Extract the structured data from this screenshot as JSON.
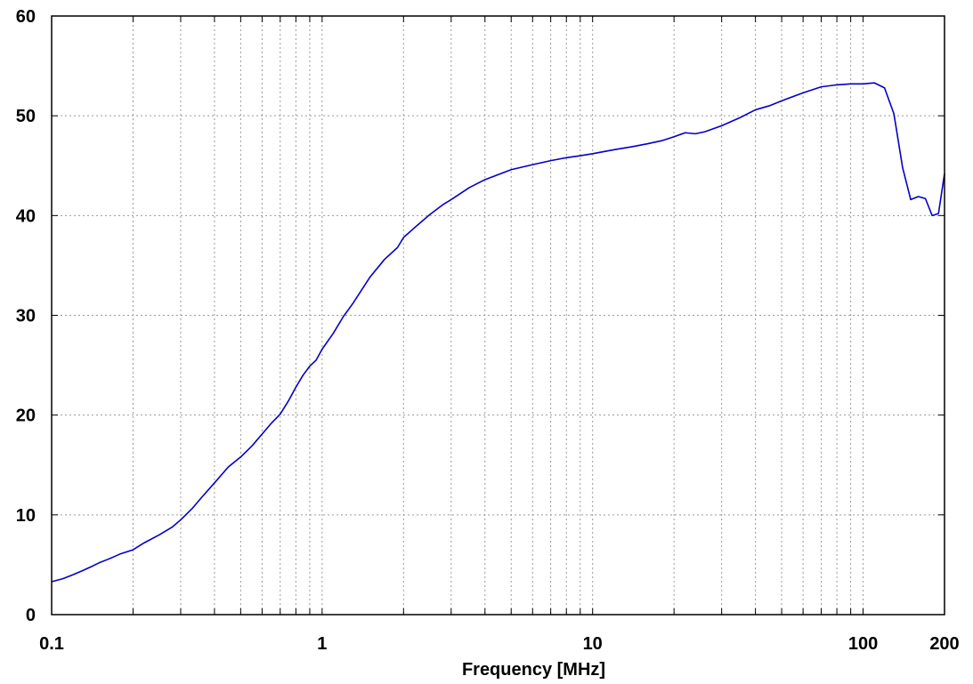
{
  "chart_data": {
    "type": "line",
    "title": "",
    "xlabel": "Frequency [MHz]",
    "ylabel": "",
    "x_scale": "log",
    "xlim": [
      0.1,
      200
    ],
    "ylim": [
      0,
      60
    ],
    "grid": true,
    "x_tick_labels": [
      {
        "value": 0.1,
        "label": "0.1"
      },
      {
        "value": 1,
        "label": "1"
      },
      {
        "value": 10,
        "label": "10"
      },
      {
        "value": 100,
        "label": "100"
      },
      {
        "value": 200,
        "label": "200"
      }
    ],
    "y_ticks": [
      0,
      10,
      20,
      30,
      40,
      50,
      60
    ],
    "line_color": "#0000cc",
    "series": [
      {
        "x": [
          0.1,
          0.11,
          0.12,
          0.13,
          0.14,
          0.15,
          0.16,
          0.17,
          0.18,
          0.2,
          0.22,
          0.25,
          0.28,
          0.3,
          0.33,
          0.36,
          0.4,
          0.45,
          0.5,
          0.55,
          0.6,
          0.65,
          0.7,
          0.75,
          0.8,
          0.85,
          0.9,
          0.95,
          1.0,
          1.1,
          1.2,
          1.3,
          1.5,
          1.7,
          1.9,
          2.0,
          2.2,
          2.5,
          2.8,
          3.0,
          3.5,
          4.0,
          5.0,
          6.0,
          7.0,
          8.0,
          9.0,
          10,
          12,
          14,
          16,
          18,
          20,
          22,
          24,
          26,
          30,
          35,
          40,
          45,
          50,
          60,
          70,
          80,
          90,
          100,
          110,
          120,
          130,
          140,
          150,
          160,
          170,
          180,
          190,
          200
        ],
        "y": [
          3.3,
          3.6,
          4.0,
          4.4,
          4.8,
          5.2,
          5.5,
          5.8,
          6.1,
          6.5,
          7.2,
          8.0,
          8.8,
          9.5,
          10.6,
          11.8,
          13.2,
          14.8,
          15.8,
          16.9,
          18.1,
          19.2,
          20.1,
          21.4,
          22.8,
          24.0,
          24.9,
          25.5,
          26.6,
          28.2,
          29.9,
          31.2,
          33.8,
          35.6,
          36.8,
          37.8,
          38.8,
          40.1,
          41.1,
          41.6,
          42.8,
          43.6,
          44.6,
          45.1,
          45.5,
          45.8,
          46.0,
          46.2,
          46.6,
          46.9,
          47.2,
          47.5,
          47.9,
          48.3,
          48.2,
          48.4,
          49.0,
          49.8,
          50.6,
          51.0,
          51.5,
          52.3,
          52.9,
          53.1,
          53.2,
          53.2,
          53.3,
          52.8,
          50.2,
          44.8,
          41.6,
          41.9,
          41.7,
          40.0,
          40.2,
          44.2
        ]
      }
    ]
  }
}
